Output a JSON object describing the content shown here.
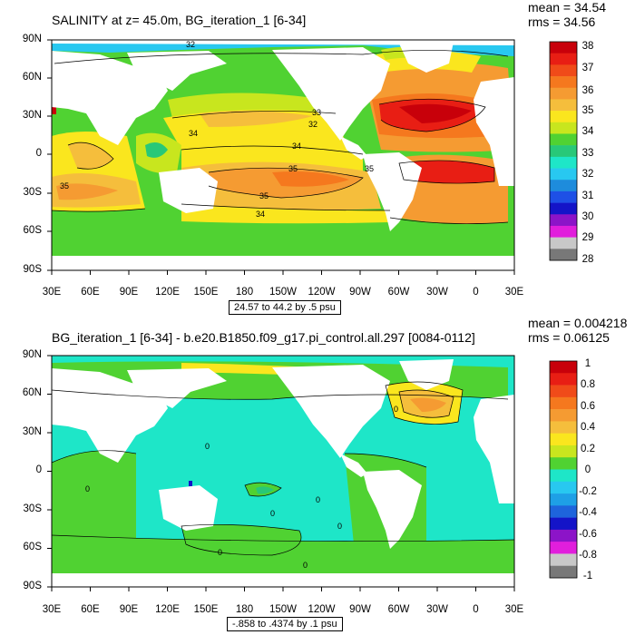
{
  "panels": [
    {
      "title": "SALINITY at z=  45.0m, BG_iteration_1 [6-34]",
      "mean_label": "mean = 34.54",
      "rms_label": "rms = 34.56",
      "range_label": "24.57 to 44.2 by .5 psu",
      "y_ticks": [
        "90N",
        "60N",
        "30N",
        "0",
        "30S",
        "60S",
        "90S"
      ],
      "x_ticks": [
        "30E",
        "60E",
        "90E",
        "120E",
        "150E",
        "180",
        "150W",
        "120W",
        "90W",
        "60W",
        "30W",
        "0",
        "30E"
      ],
      "colorbar_labels": [
        "38",
        "37",
        "36",
        "35",
        "34",
        "33",
        "32",
        "31",
        "30",
        "29",
        "28"
      ],
      "colorbar_colors": [
        "#c8000a",
        "#e81e14",
        "#f04b19",
        "#f5781e",
        "#f59b32",
        "#f5be3c",
        "#fae61e",
        "#c8e61e",
        "#50d232",
        "#28c878",
        "#1ee6c8",
        "#28c8f0",
        "#1e8cdc",
        "#1e50e6",
        "#1414c8",
        "#8c14c8",
        "#e11edc",
        "#c8c8c8",
        "#787878"
      ],
      "contour_labels": [
        "32",
        "34",
        "34",
        "33",
        "32",
        "35",
        "35",
        "35",
        "35",
        "34"
      ]
    },
    {
      "title": "BG_iteration_1 [6-34] - b.e20.B1850.f09_g17.pi_control.all.297 [0084-0112]",
      "mean_label": "mean = 0.004218",
      "rms_label": "rms = 0.06125",
      "range_label": "-.858 to .4374 by .1 psu",
      "y_ticks": [
        "90N",
        "60N",
        "30N",
        "0",
        "30S",
        "60S",
        "90S"
      ],
      "x_ticks": [
        "30E",
        "60E",
        "90E",
        "120E",
        "150E",
        "180",
        "150W",
        "120W",
        "90W",
        "60W",
        "30W",
        "0",
        "30E"
      ],
      "colorbar_labels": [
        "1",
        "0.8",
        "0.6",
        "0.4",
        "0.2",
        "0",
        "-0.2",
        "-0.4",
        "-0.6",
        "-0.8",
        "-1"
      ],
      "colorbar_colors": [
        "#c8000a",
        "#e81e14",
        "#f04b19",
        "#f5781e",
        "#f59b32",
        "#f5be3c",
        "#fae61e",
        "#c8e61e",
        "#50d232",
        "#1ee6c8",
        "#28c8f0",
        "#1ea0e6",
        "#1e64dc",
        "#1414c8",
        "#8c14c8",
        "#e11edc",
        "#c8c8c8",
        "#787878"
      ],
      "contour_labels": [
        "0",
        "0",
        "0",
        "0",
        "0",
        "0",
        "0",
        "0"
      ]
    }
  ]
}
